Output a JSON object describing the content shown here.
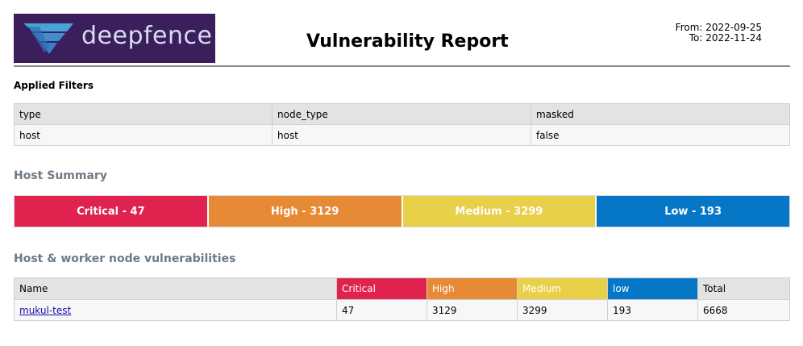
{
  "header": {
    "logo_text": "deepfence",
    "title": "Vulnerability Report",
    "from": "From: 2022-09-25",
    "to": "To: 2022-11-24"
  },
  "filters": {
    "heading": "Applied Filters",
    "columns": [
      "type",
      "node_type",
      "masked"
    ],
    "values": [
      "host",
      "host",
      "false"
    ]
  },
  "summary": {
    "heading": "Host Summary",
    "items": [
      {
        "label": "Critical - 47",
        "color": "#e0234e"
      },
      {
        "label": "High - 3129",
        "color": "#e68a35"
      },
      {
        "label": "Medium - 3299",
        "color": "#e8d048"
      },
      {
        "label": "Low - 193",
        "color": "#0677c6"
      }
    ]
  },
  "nodes": {
    "heading": "Host & worker node vulnerabilities",
    "columns": [
      "Name",
      "Critical",
      "High",
      "Medium",
      "low",
      "Total"
    ],
    "column_colors": [
      "#e3e3e3",
      "#e0234e",
      "#e68a35",
      "#e8d048",
      "#0677c6",
      "#e3e3e3"
    ],
    "rows": [
      [
        "mukul-test",
        "47",
        "3129",
        "3299",
        "193",
        "6668"
      ]
    ]
  }
}
